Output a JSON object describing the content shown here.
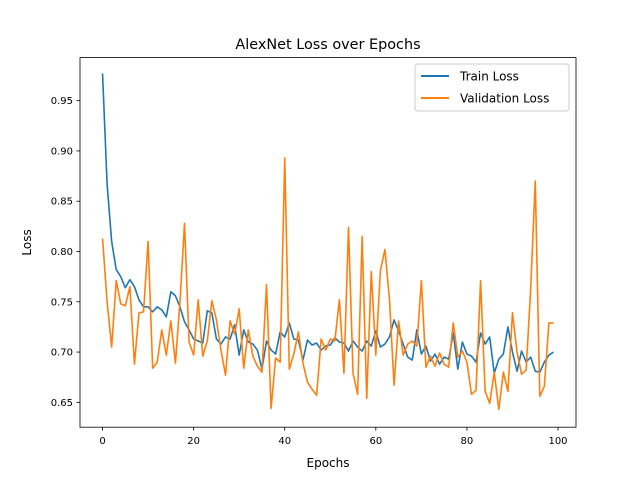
{
  "chart_data": {
    "type": "line",
    "title": "AlexNet Loss over Epochs",
    "xlabel": "Epochs",
    "ylabel": "Loss",
    "xlim": [
      -4.95,
      103.95
    ],
    "ylim": [
      0.6253,
      0.9928
    ],
    "xticks": [
      0,
      20,
      40,
      60,
      80,
      100
    ],
    "xtick_labels": [
      "0",
      "20",
      "40",
      "60",
      "80",
      "100"
    ],
    "yticks": [
      0.65,
      0.7,
      0.75,
      0.8,
      0.85,
      0.9,
      0.95
    ],
    "ytick_labels": [
      "0.65",
      "0.70",
      "0.75",
      "0.80",
      "0.85",
      "0.90",
      "0.95"
    ],
    "grid": false,
    "legend_position": "top-right",
    "x": [
      0,
      1,
      2,
      3,
      4,
      5,
      6,
      7,
      8,
      9,
      10,
      11,
      12,
      13,
      14,
      15,
      16,
      17,
      18,
      19,
      20,
      21,
      22,
      23,
      24,
      25,
      26,
      27,
      28,
      29,
      30,
      31,
      32,
      33,
      34,
      35,
      36,
      37,
      38,
      39,
      40,
      41,
      42,
      43,
      44,
      45,
      46,
      47,
      48,
      49,
      50,
      51,
      52,
      53,
      54,
      55,
      56,
      57,
      58,
      59,
      60,
      61,
      62,
      63,
      64,
      65,
      66,
      67,
      68,
      69,
      70,
      71,
      72,
      73,
      74,
      75,
      76,
      77,
      78,
      79,
      80,
      81,
      82,
      83,
      84,
      85,
      86,
      87,
      88,
      89,
      90,
      91,
      92,
      93,
      94,
      95,
      96,
      97,
      98,
      99
    ],
    "series": [
      {
        "name": "Train Loss",
        "color": "#1f77b4",
        "values": [
          0.977,
          0.867,
          0.81,
          0.782,
          0.775,
          0.764,
          0.772,
          0.765,
          0.752,
          0.745,
          0.745,
          0.74,
          0.745,
          0.742,
          0.735,
          0.76,
          0.756,
          0.745,
          0.73,
          0.722,
          0.713,
          0.711,
          0.709,
          0.741,
          0.739,
          0.713,
          0.708,
          0.715,
          0.713,
          0.727,
          0.697,
          0.722,
          0.71,
          0.708,
          0.702,
          0.683,
          0.711,
          0.702,
          0.698,
          0.72,
          0.715,
          0.729,
          0.713,
          0.712,
          0.692,
          0.712,
          0.707,
          0.709,
          0.702,
          0.706,
          0.707,
          0.714,
          0.71,
          0.709,
          0.701,
          0.711,
          0.705,
          0.701,
          0.711,
          0.706,
          0.721,
          0.705,
          0.708,
          0.715,
          0.732,
          0.721,
          0.708,
          0.695,
          0.692,
          0.722,
          0.698,
          0.706,
          0.691,
          0.698,
          0.688,
          0.695,
          0.693,
          0.719,
          0.683,
          0.71,
          0.698,
          0.696,
          0.69,
          0.719,
          0.708,
          0.715,
          0.679,
          0.693,
          0.698,
          0.725,
          0.7,
          0.681,
          0.701,
          0.69,
          0.695,
          0.681,
          0.68,
          0.69,
          0.697,
          0.7
        ]
      },
      {
        "name": "Validation Loss",
        "color": "#ff7f0e",
        "values": [
          0.813,
          0.75,
          0.705,
          0.771,
          0.748,
          0.746,
          0.765,
          0.688,
          0.739,
          0.74,
          0.81,
          0.684,
          0.69,
          0.722,
          0.697,
          0.731,
          0.689,
          0.75,
          0.828,
          0.71,
          0.697,
          0.752,
          0.696,
          0.711,
          0.751,
          0.732,
          0.702,
          0.677,
          0.731,
          0.718,
          0.743,
          0.684,
          0.722,
          0.696,
          0.686,
          0.68,
          0.767,
          0.644,
          0.694,
          0.69,
          0.893,
          0.683,
          0.698,
          0.72,
          0.689,
          0.67,
          0.663,
          0.657,
          0.713,
          0.702,
          0.713,
          0.711,
          0.752,
          0.679,
          0.824,
          0.679,
          0.658,
          0.815,
          0.654,
          0.78,
          0.697,
          0.781,
          0.802,
          0.752,
          0.667,
          0.731,
          0.697,
          0.708,
          0.711,
          0.706,
          0.771,
          0.685,
          0.696,
          0.686,
          0.699,
          0.688,
          0.685,
          0.729,
          0.695,
          0.701,
          0.69,
          0.658,
          0.662,
          0.771,
          0.661,
          0.649,
          0.68,
          0.643,
          0.68,
          0.661,
          0.739,
          0.7,
          0.678,
          0.682,
          0.763,
          0.87,
          0.656,
          0.666,
          0.729,
          0.729
        ]
      }
    ]
  }
}
